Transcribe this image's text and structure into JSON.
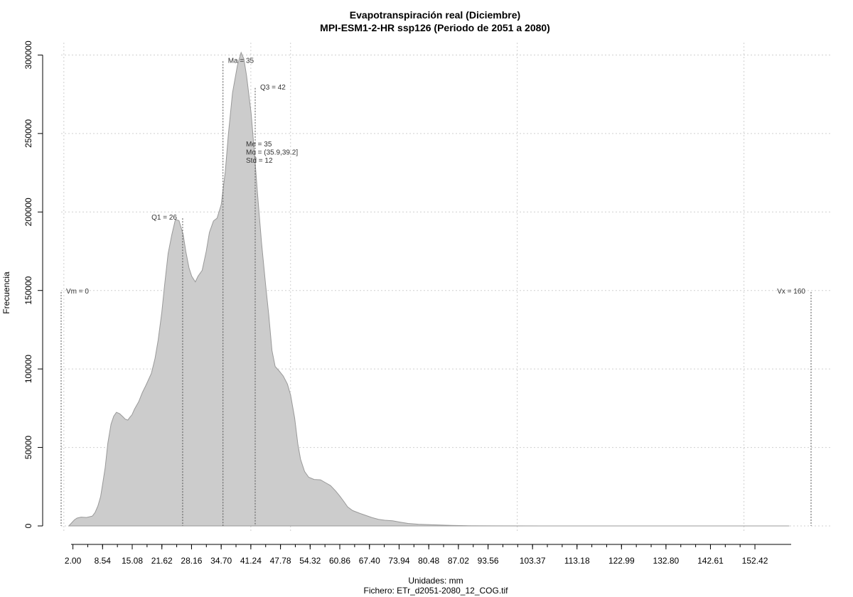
{
  "chart_data": {
    "type": "area",
    "title": "Evapotranspiración real (Diciembre)",
    "subtitle": "MPI-ESM1-2-HR ssp126 (Periodo de 2051 a 2080)",
    "xlabel": "Unidades: mm",
    "caption": "Fichero: ETr_d2051-2080_12_COG.tif",
    "ylabel": "Frecuencia",
    "xlim": [
      -0.6,
      164.8
    ],
    "ylim": [
      0,
      302000
    ],
    "x_ticks": [
      "2.00",
      "8.54",
      "15.08",
      "21.62",
      "28.16",
      "34.70",
      "41.24",
      "47.78",
      "54.32",
      "60.86",
      "67.40",
      "73.94",
      "80.48",
      "87.02",
      "93.56",
      "103.37",
      "113.18",
      "122.99",
      "132.80",
      "142.61",
      "152.42"
    ],
    "x_tick_values": [
      2.0,
      8.54,
      15.08,
      21.62,
      28.16,
      34.7,
      41.24,
      47.78,
      54.32,
      60.86,
      67.4,
      73.94,
      80.48,
      87.02,
      93.56,
      103.37,
      113.18,
      122.99,
      132.8,
      142.61,
      152.42
    ],
    "y_ticks": [
      "0",
      "50000",
      "100000",
      "150000",
      "200000",
      "250000",
      "300000"
    ],
    "y_tick_values": [
      0,
      50000,
      100000,
      150000,
      200000,
      250000,
      300000
    ],
    "x_grid": [
      0,
      41.24,
      50,
      100,
      150
    ],
    "y_grid": [
      0,
      50000,
      100000,
      150000,
      200000,
      250000,
      300000
    ],
    "grid": true,
    "colors": {
      "fill": "#cccccc",
      "stroke": "#999999"
    },
    "series": [
      {
        "x": [
          1.1,
          2.3,
          2.9,
          3.8,
          5.0,
          6.3,
          6.9,
          7.5,
          8.1,
          8.5,
          9.1,
          9.7,
          10.4,
          11.0,
          11.6,
          12.3,
          13.1,
          13.5,
          14.1,
          14.6,
          15.0,
          15.6,
          16.5,
          17.3,
          18.1,
          19.3,
          20.1,
          20.8,
          21.6,
          22.2,
          23.0,
          23.8,
          24.6,
          25.4,
          26.3,
          26.9,
          27.6,
          28.2,
          29.0,
          29.6,
          30.5,
          31.4,
          32.1,
          33.0,
          33.8,
          34.7,
          35.6,
          36.3,
          37.2,
          38.3,
          39.1,
          39.7,
          40.3,
          41.3,
          42.1,
          42.7,
          43.6,
          44.5,
          45.2,
          45.9,
          46.6,
          47.5,
          48.4,
          49.3,
          50.0,
          50.9,
          51.6,
          52.2,
          53.1,
          54.0,
          55.2,
          56.6,
          57.8,
          58.8,
          60.0,
          60.9,
          61.8,
          62.6,
          63.7,
          65.1,
          66.5,
          67.9,
          69.4,
          70.8,
          72.5,
          74.2,
          75.9,
          78.2,
          80.8,
          84.8,
          89.4,
          95.0,
          110.0,
          130.0,
          160.0
        ],
        "y": [
          0,
          3800,
          5000,
          5600,
          5400,
          6300,
          8600,
          12700,
          18600,
          25600,
          36900,
          52700,
          64900,
          69900,
          72400,
          71500,
          69300,
          68100,
          67400,
          69400,
          70700,
          74500,
          79100,
          84900,
          89600,
          97100,
          106500,
          118400,
          136000,
          152800,
          173500,
          185300,
          195200,
          194500,
          185800,
          174900,
          164400,
          159100,
          155500,
          159100,
          162800,
          174900,
          187000,
          194300,
          196100,
          204700,
          225600,
          250100,
          275900,
          293600,
          301600,
          297500,
          286700,
          262800,
          234900,
          212200,
          180500,
          153500,
          134400,
          111800,
          101600,
          98700,
          95500,
          90400,
          83400,
          68800,
          52200,
          42500,
          34700,
          31000,
          29600,
          29400,
          27400,
          25700,
          22100,
          18900,
          15400,
          12100,
          9800,
          8200,
          6800,
          5400,
          4200,
          3600,
          3300,
          2400,
          1600,
          1100,
          800,
          400,
          150,
          60,
          20,
          5,
          0
        ]
      }
    ],
    "markers": [
      {
        "label": "Vm = 0",
        "x": -0.6,
        "top": 149000,
        "anchor": "start"
      },
      {
        "label": "Q1 = 26",
        "x": 26.2,
        "top": 196000,
        "anchor": "end"
      },
      {
        "label": "Ma = 35",
        "x": 35.1,
        "top": 296000,
        "anchor": "start"
      },
      {
        "label": "Q3 = 42",
        "x": 42.2,
        "top": 279000,
        "anchor": "start"
      },
      {
        "label": "Vx = 160",
        "x": 164.8,
        "top": 149000,
        "anchor": "end"
      }
    ],
    "stats_box": [
      "Me = 35",
      "Mo = (35.9,39.2]",
      "Std = 12"
    ]
  }
}
